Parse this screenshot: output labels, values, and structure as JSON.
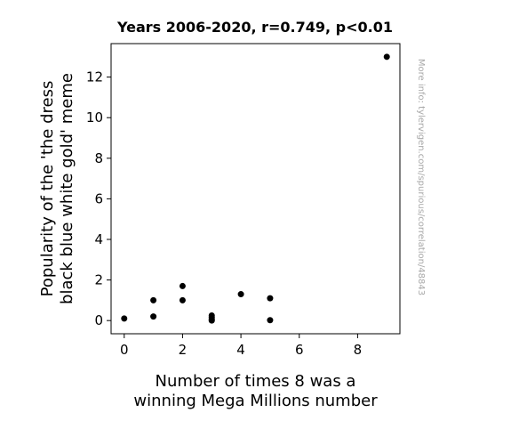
{
  "chart_data": {
    "type": "scatter",
    "title": "Years 2006-2020, r=0.749, p<0.01",
    "xlabel_lines": [
      "Number of times 8 was a",
      "winning Mega Millions number"
    ],
    "ylabel_lines": [
      "Popularity of the 'the dress",
      "black blue white gold' meme"
    ],
    "xlim": [
      -0.45,
      9.45
    ],
    "ylim": [
      -0.65,
      13.65
    ],
    "xticks": [
      0,
      2,
      4,
      6,
      8
    ],
    "yticks": [
      0,
      2,
      4,
      6,
      8,
      10,
      12
    ],
    "x": [
      0,
      1,
      1,
      2,
      2,
      3,
      3,
      3,
      3,
      4,
      5,
      5,
      9
    ],
    "y": [
      0.1,
      0.2,
      1.0,
      1.0,
      1.7,
      0.0,
      0.05,
      0.15,
      0.25,
      1.3,
      0.02,
      1.1,
      13.0
    ],
    "marker_color": "#000000",
    "grid": false,
    "watermark": "More info: tylervigen.com/spurious/correlation/48843"
  }
}
